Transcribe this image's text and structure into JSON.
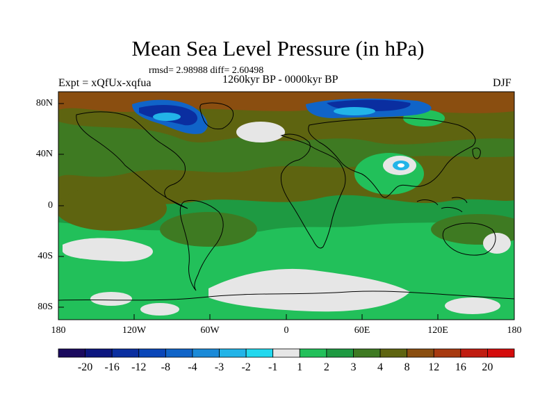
{
  "title": "Mean Sea Level Pressure (in hPa)",
  "stats": "rmsd= 2.98988 diff= 2.60498",
  "period": "1260kyr BP - 0000kyr BP",
  "experiment": "Expt = xQfUx-xqfua",
  "season": "DJF",
  "lat_labels": [
    "80N",
    "40N",
    "0",
    "40S",
    "80S"
  ],
  "lon_labels": [
    "180",
    "120W",
    "60W",
    "0",
    "60E",
    "120E",
    "180"
  ],
  "colorbar": {
    "labels": [
      "-20",
      "-16",
      "-12",
      "-8",
      "-4",
      "-3",
      "-2",
      "-1",
      "1",
      "2",
      "3",
      "4",
      "8",
      "12",
      "16",
      "20"
    ],
    "colors": [
      "#1a0a5e",
      "#0c167f",
      "#0a2ea0",
      "#0a46b8",
      "#1064c8",
      "#1a8ad8",
      "#22b4e8",
      "#22d8ee",
      "#e6e6e6",
      "#22c05a",
      "#1e9a42",
      "#3e7a22",
      "#5e6410",
      "#8a4e10",
      "#a83a10",
      "#c01c10",
      "#d40c0c"
    ]
  },
  "map_colors": {
    "brown": "#5e6410",
    "dark_brown": "#8a4e10",
    "light_green": "#22c05a",
    "mid_green": "#1e9a42",
    "olive": "#3e7a22",
    "white": "#e6e6e6",
    "blue": "#1064c8",
    "deep_blue": "#0a2ea0",
    "cyan": "#22b4e8"
  }
}
